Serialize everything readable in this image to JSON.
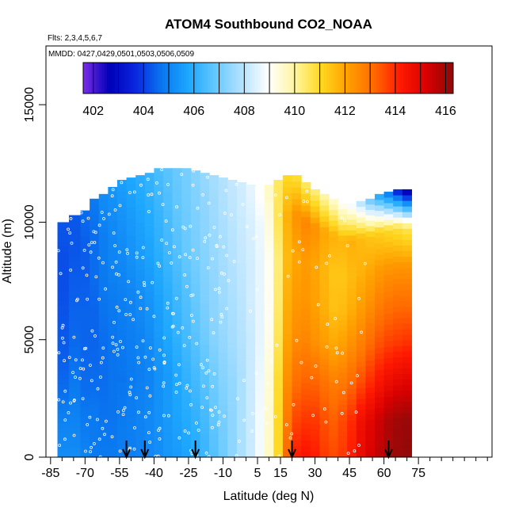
{
  "chart_data": {
    "type": "heatmap",
    "title": "ATOM4 Southbound CO2_NOAA",
    "subtitle_flights": "Flts: 2,3,4,5,6,7",
    "subtitle_dates": "MMDD: 0427,0429,0501,0503,0506,0509",
    "xlabel": "Latitude (deg N)",
    "ylabel": "Altitude (m)",
    "xlim": [
      -87,
      107
    ],
    "ylim": [
      0,
      17500
    ],
    "x_ticks": [
      -85,
      -70,
      -55,
      -40,
      -25,
      -10,
      5,
      15,
      30,
      45,
      60,
      75
    ],
    "x_minor_ticks": [
      -80,
      -75,
      -65,
      -60,
      -50,
      -45,
      -35,
      -30,
      -20,
      -15,
      -5,
      0,
      10,
      20,
      25,
      35,
      40,
      50,
      55,
      65,
      70,
      80,
      85,
      90,
      95,
      100,
      105
    ],
    "y_ticks": [
      0,
      5000,
      10000,
      15000
    ],
    "colorbar": {
      "min": 401.6,
      "max": 416.3,
      "ticks": [
        402,
        404,
        406,
        408,
        410,
        412,
        414,
        416
      ],
      "colors": [
        "#7b2ee8",
        "#0000b8",
        "#0a28e0",
        "#0a78f0",
        "#1ea8ff",
        "#64c8ff",
        "#b4e2ff",
        "#ffffff",
        "#fff6a0",
        "#ffd820",
        "#ffa000",
        "#ff6a00",
        "#ff1a00",
        "#d80000",
        "#8c0a0a"
      ]
    },
    "latitude_bands": [
      [
        -77,
        -72,
        12500
      ],
      [
        -72,
        -68,
        12500
      ],
      [
        -68,
        -64,
        12500
      ],
      [
        -64,
        -60,
        12500
      ],
      [
        -60,
        -56,
        12500
      ],
      [
        -56,
        -52,
        12500
      ],
      [
        -52,
        -48,
        12500
      ],
      [
        -48,
        -44,
        12500
      ],
      [
        -44,
        -40,
        12500
      ],
      [
        -40,
        -36,
        12500
      ],
      [
        -36,
        -32,
        12500
      ],
      [
        -32,
        -28,
        12500
      ],
      [
        -28,
        -24,
        12500
      ],
      [
        -24,
        -20,
        12500
      ],
      [
        -20,
        -16,
        12500
      ],
      [
        -16,
        -12,
        12500
      ],
      [
        -12,
        -8,
        12500
      ],
      [
        -8,
        -4,
        12500
      ],
      [
        -4,
        0,
        12500
      ],
      [
        0,
        4,
        12500
      ],
      [
        4,
        8,
        12500
      ],
      [
        8,
        12,
        12500
      ],
      [
        12,
        16,
        12500
      ],
      [
        16,
        20,
        12500
      ],
      [
        20,
        24,
        12500
      ],
      [
        24,
        28,
        12500
      ],
      [
        28,
        32,
        12500
      ],
      [
        32,
        36,
        12500
      ],
      [
        36,
        40,
        12500
      ],
      [
        40,
        44,
        12500
      ],
      [
        44,
        48,
        12500
      ],
      [
        48,
        52,
        12500
      ],
      [
        52,
        56,
        12500
      ],
      [
        56,
        60,
        12500
      ],
      [
        60,
        64,
        12500
      ],
      [
        64,
        68,
        12500
      ],
      [
        68,
        72,
        12500
      ]
    ],
    "profiles": [
      {
        "lat": [
          -82,
          -77
        ],
        "top": 10000,
        "values": [
          405.2,
          405.0,
          404.6,
          404.4,
          404.3,
          404.2,
          404.2,
          404.3
        ]
      },
      {
        "lat": [
          -77,
          -72
        ],
        "top": 10300,
        "values": [
          405.2,
          405.0,
          404.8,
          404.6,
          404.5,
          404.4,
          404.3,
          404.3
        ]
      },
      {
        "lat": [
          -72,
          -68
        ],
        "top": 10500,
        "values": [
          405.0,
          404.8,
          404.6,
          404.5,
          404.5,
          404.4,
          404.4,
          404.6
        ]
      },
      {
        "lat": [
          -68,
          -64
        ],
        "top": 11000,
        "values": [
          404.8,
          404.8,
          404.6,
          404.5,
          404.5,
          404.6,
          404.6,
          404.8
        ]
      },
      {
        "lat": [
          -64,
          -60
        ],
        "top": 11200,
        "values": [
          404.8,
          404.7,
          404.6,
          404.6,
          404.7,
          404.8,
          404.9,
          405.2
        ]
      },
      {
        "lat": [
          -60,
          -56
        ],
        "top": 11500,
        "values": [
          404.8,
          404.7,
          404.7,
          404.7,
          404.8,
          405.0,
          405.1,
          405.4
        ]
      },
      {
        "lat": [
          -56,
          -52
        ],
        "top": 11800,
        "values": [
          404.9,
          404.8,
          404.7,
          404.8,
          404.9,
          405.1,
          405.3,
          405.6
        ]
      },
      {
        "lat": [
          -52,
          -48
        ],
        "top": 11900,
        "values": [
          404.9,
          404.9,
          404.8,
          404.9,
          405.0,
          405.3,
          405.5,
          405.8
        ]
      },
      {
        "lat": [
          -48,
          -44
        ],
        "top": 12000,
        "values": [
          405.0,
          405.0,
          404.9,
          405.0,
          405.2,
          405.5,
          405.7,
          406.0
        ]
      },
      {
        "lat": [
          -44,
          -40
        ],
        "top": 12100,
        "values": [
          405.1,
          405.1,
          405.0,
          405.2,
          405.4,
          405.7,
          405.9,
          406.2
        ]
      },
      {
        "lat": [
          -40,
          -36
        ],
        "top": 12300,
        "values": [
          405.2,
          405.3,
          405.3,
          405.5,
          405.7,
          406.0,
          406.2,
          406.5
        ]
      },
      {
        "lat": [
          -36,
          -32
        ],
        "top": 12300,
        "values": [
          405.4,
          405.5,
          405.5,
          405.8,
          406.0,
          406.3,
          406.5,
          406.7
        ]
      },
      {
        "lat": [
          -32,
          -28
        ],
        "top": 12300,
        "values": [
          405.5,
          405.7,
          405.8,
          406.1,
          406.3,
          406.6,
          406.8,
          406.9
        ]
      },
      {
        "lat": [
          -28,
          -24
        ],
        "top": 12300,
        "values": [
          405.7,
          405.9,
          406.1,
          406.4,
          406.6,
          406.9,
          407.0,
          407.1
        ]
      },
      {
        "lat": [
          -24,
          -20
        ],
        "top": 12200,
        "values": [
          405.9,
          406.1,
          406.4,
          406.7,
          406.9,
          407.1,
          407.2,
          407.3
        ]
      },
      {
        "lat": [
          -20,
          -16
        ],
        "top": 12100,
        "values": [
          406.2,
          406.4,
          406.7,
          407.0,
          407.2,
          407.3,
          407.4,
          407.5
        ]
      },
      {
        "lat": [
          -16,
          -12
        ],
        "top": 12000,
        "values": [
          406.6,
          406.8,
          407.0,
          407.3,
          407.4,
          407.5,
          407.6,
          407.7
        ]
      },
      {
        "lat": [
          -12,
          -8
        ],
        "top": 11900,
        "values": [
          407.0,
          407.1,
          407.3,
          407.5,
          407.6,
          407.7,
          407.8,
          407.9
        ]
      },
      {
        "lat": [
          -8,
          -4
        ],
        "top": 11800,
        "values": [
          407.4,
          407.4,
          407.5,
          407.7,
          407.8,
          407.9,
          408.0,
          408.1
        ]
      },
      {
        "lat": [
          -4,
          0
        ],
        "top": 11700,
        "values": [
          407.8,
          407.8,
          407.8,
          407.9,
          408.0,
          408.1,
          408.2,
          408.3
        ]
      },
      {
        "lat": [
          0,
          4
        ],
        "top": 11600,
        "values": [
          408.2,
          408.2,
          408.2,
          408.2,
          408.3,
          408.3,
          408.4,
          408.6
        ]
      },
      {
        "lat": [
          4,
          8
        ],
        "top": 11500,
        "values": [
          408.8,
          408.8,
          408.7,
          408.6,
          408.6,
          408.6,
          408.7,
          409.0
        ]
      },
      {
        "lat": [
          8,
          12
        ],
        "top": 11600,
        "values": [
          409.6,
          409.5,
          409.4,
          409.2,
          409.1,
          409.1,
          409.3,
          409.6
        ]
      },
      {
        "lat": [
          12,
          16
        ],
        "top": 11800,
        "values": [
          411.0,
          411.0,
          410.9,
          410.6,
          410.4,
          410.3,
          410.6,
          410.5
        ]
      },
      {
        "lat": [
          16,
          20
        ],
        "top": 12000,
        "values": [
          413.2,
          412.8,
          412.4,
          412.0,
          411.8,
          411.6,
          411.8,
          411.0
        ]
      },
      {
        "lat": [
          20,
          24
        ],
        "top": 12000,
        "values": [
          414.2,
          413.6,
          413.0,
          412.5,
          412.2,
          412.0,
          412.4,
          410.8
        ]
      },
      {
        "lat": [
          24,
          28
        ],
        "top": 11700,
        "values": [
          414.4,
          413.8,
          413.2,
          412.6,
          412.3,
          412.2,
          412.6,
          410.4
        ]
      },
      {
        "lat": [
          28,
          32
        ],
        "top": 11400,
        "values": [
          414.2,
          413.8,
          413.2,
          412.4,
          412.1,
          412.0,
          412.4,
          410.2
        ]
      },
      {
        "lat": [
          32,
          36
        ],
        "top": 11200,
        "values": [
          413.8,
          413.5,
          413.0,
          412.2,
          411.8,
          411.7,
          412.0,
          409.8
        ]
      },
      {
        "lat": [
          36,
          40
        ],
        "top": 11000,
        "values": [
          413.6,
          413.3,
          412.8,
          412.0,
          411.5,
          411.4,
          411.8,
          409.4
        ]
      },
      {
        "lat": [
          40,
          44
        ],
        "top": 10800,
        "values": [
          413.8,
          413.6,
          412.9,
          412.2,
          411.6,
          411.4,
          411.7,
          409.0
        ]
      },
      {
        "lat": [
          44,
          48
        ],
        "top": 10800,
        "values": [
          414.2,
          414.0,
          413.2,
          412.5,
          411.9,
          411.6,
          411.8,
          408.6
        ]
      },
      {
        "lat": [
          48,
          52
        ],
        "top": 10900,
        "values": [
          414.8,
          414.6,
          413.6,
          412.8,
          412.2,
          411.8,
          411.6,
          407.8
        ]
      },
      {
        "lat": [
          52,
          56
        ],
        "top": 11000,
        "values": [
          415.2,
          415.0,
          414.0,
          413.2,
          412.5,
          412.0,
          411.4,
          406.8
        ]
      },
      {
        "lat": [
          56,
          60
        ],
        "top": 11200,
        "values": [
          415.6,
          415.4,
          414.4,
          413.5,
          412.8,
          412.2,
          411.2,
          405.6
        ]
      },
      {
        "lat": [
          60,
          64
        ],
        "top": 11300,
        "values": [
          415.9,
          415.8,
          414.7,
          413.7,
          413.0,
          412.3,
          411.0,
          404.6
        ]
      },
      {
        "lat": [
          64,
          68
        ],
        "top": 11400,
        "values": [
          416.1,
          416.0,
          414.9,
          413.8,
          413.1,
          412.3,
          410.8,
          403.2
        ]
      },
      {
        "lat": [
          68,
          72
        ],
        "top": 11400,
        "values": [
          416.2,
          416.1,
          415.0,
          413.9,
          413.1,
          412.3,
          410.6,
          402.2
        ]
      }
    ],
    "arrows_lat": [
      -52,
      -44,
      -22,
      20,
      62
    ]
  }
}
